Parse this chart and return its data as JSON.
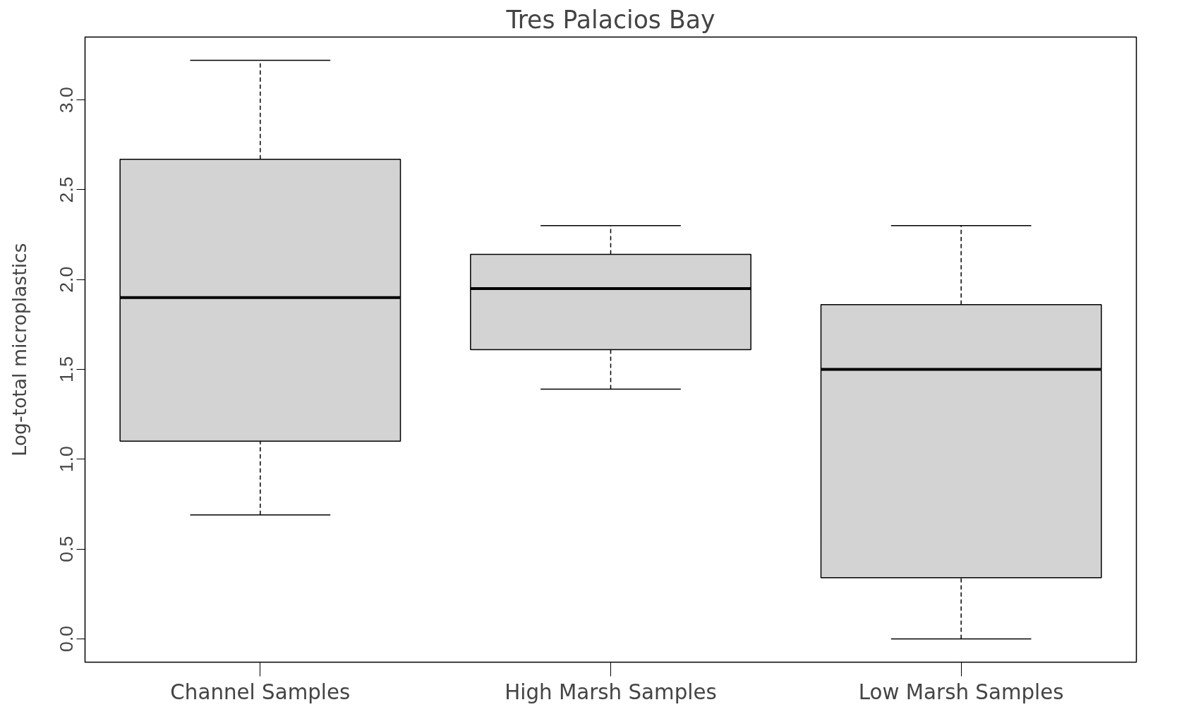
{
  "chart_data": {
    "type": "box",
    "title": "Tres Palacios Bay",
    "ylabel": "Log-total microplastics",
    "categories": [
      "Channel Samples",
      "High Marsh Samples",
      "Low Marsh Samples"
    ],
    "boxes": [
      {
        "low": 0.69,
        "q1": 1.1,
        "median": 1.9,
        "q3": 2.67,
        "high": 3.22
      },
      {
        "low": 1.39,
        "q1": 1.61,
        "median": 1.95,
        "q3": 2.14,
        "high": 2.3
      },
      {
        "low": 0.0,
        "q1": 0.34,
        "median": 1.5,
        "q3": 1.86,
        "high": 2.3
      }
    ],
    "color": "#d3d3d3",
    "ylim": [
      -0.13,
      3.35
    ],
    "yticks": [
      {
        "value": 0,
        "label": "0.0"
      },
      0.5,
      {
        "value": 1,
        "label": "1.0"
      },
      1.5,
      {
        "value": 2,
        "label": "2.0"
      },
      2.5,
      {
        "value": 3,
        "label": "3.0"
      }
    ],
    "grid": false
  }
}
